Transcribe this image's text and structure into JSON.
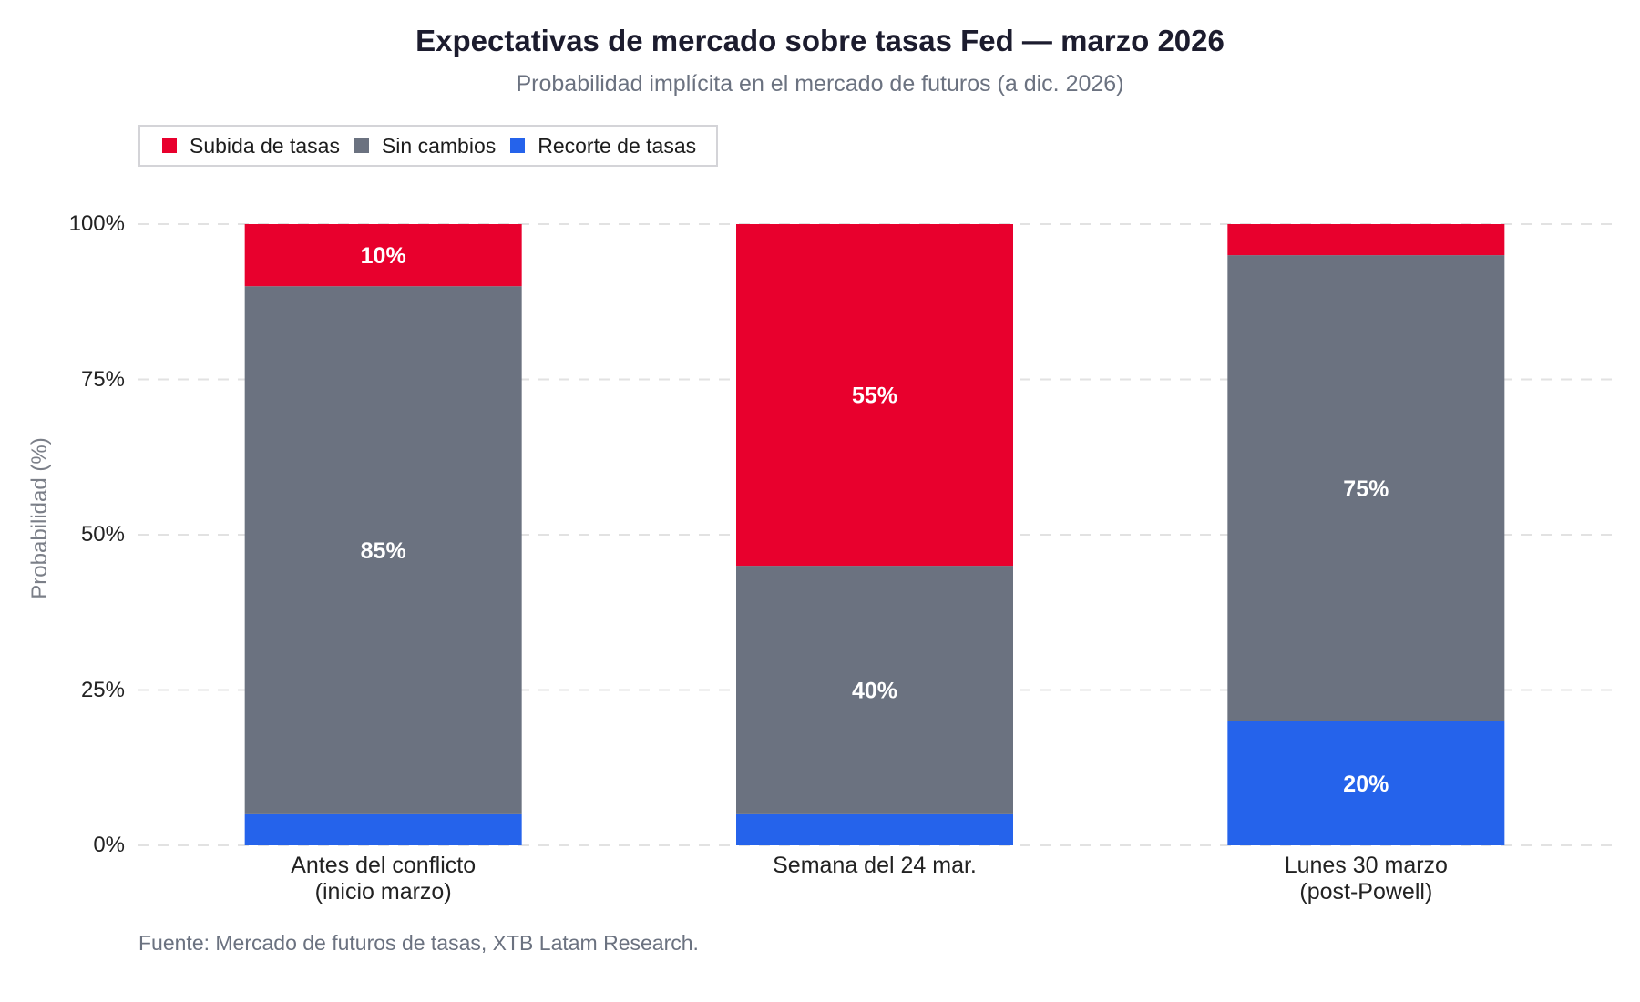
{
  "chart_data": {
    "type": "bar",
    "stacked": true,
    "title": "Expectativas de mercado sobre tasas Fed — marzo 2026",
    "subtitle": "Probabilidad implícita en el mercado de futuros (a dic. 2026)",
    "y_label": "Probabilidad (%)",
    "source": "Fuente: Mercado de futuros de tasas, XTB Latam Research.",
    "categories": [
      "Antes del conflicto\n(inicio marzo)",
      "Semana del 24 mar.",
      "Lunes 30 marzo\n(post-Powell)"
    ],
    "series": [
      {
        "name": "Subida de tasas",
        "color": "#e8002d",
        "values": [
          10,
          55,
          5
        ],
        "value_labels": [
          "10%",
          "55%",
          null
        ]
      },
      {
        "name": "Sin cambios",
        "color": "#6b7280",
        "values": [
          85,
          40,
          75
        ],
        "value_labels": [
          "85%",
          "40%",
          "75%"
        ]
      },
      {
        "name": "Recorte de tasas",
        "color": "#2563eb",
        "values": [
          5,
          5,
          20
        ],
        "value_labels": [
          null,
          null,
          "20%"
        ]
      }
    ],
    "stack_order": [
      2,
      1,
      0
    ],
    "ylim": [
      0,
      100
    ],
    "yticks": [
      {
        "value": 0,
        "label": "0%"
      },
      {
        "value": 25,
        "label": "25%"
      },
      {
        "value": 50,
        "label": "50%"
      },
      {
        "value": 75,
        "label": "75%"
      },
      {
        "value": 100,
        "label": "100%"
      }
    ],
    "grid": true,
    "legend": "top-left"
  }
}
